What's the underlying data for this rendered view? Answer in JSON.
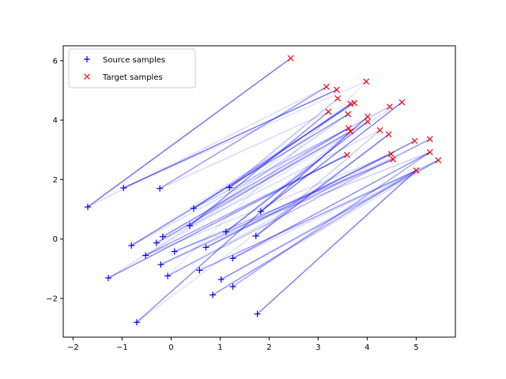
{
  "chart_data": {
    "type": "scatter",
    "title": "",
    "xlabel": "",
    "ylabel": "",
    "xlim": [
      -2.2,
      5.8
    ],
    "ylim": [
      -3.3,
      6.5
    ],
    "xticks": [
      -2,
      -1,
      0,
      1,
      2,
      3,
      4,
      5
    ],
    "yticks": [
      -2,
      0,
      2,
      4,
      6
    ],
    "grid": false,
    "legend_position": "top-left",
    "colors": {
      "source": "#0000ff",
      "target": "#ff0000",
      "lines": "#0000ff"
    },
    "series": [
      {
        "name": "Source samples",
        "marker": "+",
        "points": [
          [
            -1.7,
            1.08
          ],
          [
            -0.97,
            1.72
          ],
          [
            -0.23,
            1.7
          ],
          [
            1.19,
            1.73
          ],
          [
            0.46,
            1.03
          ],
          [
            1.83,
            0.93
          ],
          [
            0.38,
            0.45
          ],
          [
            1.12,
            0.24
          ],
          [
            1.73,
            0.1
          ],
          [
            -0.17,
            0.08
          ],
          [
            -0.81,
            -0.22
          ],
          [
            -0.3,
            -0.13
          ],
          [
            0.71,
            -0.28
          ],
          [
            -0.52,
            -0.55
          ],
          [
            0.07,
            -0.42
          ],
          [
            1.26,
            -0.65
          ],
          [
            -0.21,
            -0.86
          ],
          [
            -1.28,
            -1.31
          ],
          [
            -0.07,
            -1.24
          ],
          [
            0.58,
            -1.05
          ],
          [
            1.02,
            -1.36
          ],
          [
            1.26,
            -1.6
          ],
          [
            0.85,
            -1.88
          ],
          [
            -0.7,
            -2.8
          ],
          [
            1.76,
            -2.52
          ]
        ]
      },
      {
        "name": "Target samples",
        "marker": "x",
        "points": [
          [
            2.44,
            6.08
          ],
          [
            3.17,
            5.12
          ],
          [
            3.38,
            5.02
          ],
          [
            3.98,
            5.3
          ],
          [
            3.4,
            4.73
          ],
          [
            3.66,
            4.55
          ],
          [
            3.74,
            4.58
          ],
          [
            4.46,
            4.45
          ],
          [
            4.71,
            4.6
          ],
          [
            3.21,
            4.28
          ],
          [
            3.61,
            4.2
          ],
          [
            4.01,
            4.12
          ],
          [
            4.01,
            3.95
          ],
          [
            3.62,
            3.73
          ],
          [
            3.66,
            3.62
          ],
          [
            4.26,
            3.66
          ],
          [
            4.44,
            3.52
          ],
          [
            4.97,
            3.3
          ],
          [
            5.28,
            3.36
          ],
          [
            3.59,
            2.83
          ],
          [
            4.49,
            2.86
          ],
          [
            4.53,
            2.68
          ],
          [
            5.28,
            2.92
          ],
          [
            5.0,
            2.31
          ],
          [
            5.45,
            2.65
          ]
        ]
      }
    ],
    "links": [
      [
        0,
        0,
        0.55
      ],
      [
        0,
        1,
        0.15
      ],
      [
        1,
        2,
        0.55
      ],
      [
        2,
        1,
        0.4
      ],
      [
        2,
        9,
        0.15
      ],
      [
        3,
        5,
        0.5
      ],
      [
        3,
        4,
        0.25
      ],
      [
        4,
        6,
        0.45
      ],
      [
        4,
        7,
        0.25
      ],
      [
        5,
        8,
        0.5
      ],
      [
        5,
        11,
        0.15
      ],
      [
        6,
        9,
        0.45
      ],
      [
        6,
        10,
        0.2
      ],
      [
        7,
        12,
        0.5
      ],
      [
        7,
        14,
        0.15
      ],
      [
        8,
        16,
        0.5
      ],
      [
        8,
        15,
        0.2
      ],
      [
        9,
        13,
        0.4
      ],
      [
        9,
        12,
        0.15
      ],
      [
        10,
        10,
        0.45
      ],
      [
        10,
        13,
        0.15
      ],
      [
        11,
        14,
        0.4
      ],
      [
        11,
        15,
        0.15
      ],
      [
        12,
        17,
        0.45
      ],
      [
        12,
        18,
        0.15
      ],
      [
        13,
        19,
        0.4
      ],
      [
        13,
        20,
        0.15
      ],
      [
        14,
        21,
        0.35
      ],
      [
        14,
        22,
        0.2
      ],
      [
        15,
        22,
        0.45
      ],
      [
        15,
        24,
        0.15
      ],
      [
        16,
        20,
        0.35
      ],
      [
        16,
        21,
        0.2
      ],
      [
        17,
        19,
        0.45
      ],
      [
        17,
        13,
        0.15
      ],
      [
        18,
        18,
        0.3
      ],
      [
        18,
        17,
        0.15
      ],
      [
        19,
        23,
        0.3
      ],
      [
        19,
        24,
        0.15
      ],
      [
        20,
        24,
        0.35
      ],
      [
        20,
        23,
        0.2
      ],
      [
        21,
        22,
        0.35
      ],
      [
        22,
        23,
        0.35
      ],
      [
        22,
        24,
        0.15
      ],
      [
        23,
        11,
        0.45
      ],
      [
        23,
        16,
        0.12
      ],
      [
        24,
        23,
        0.5
      ],
      [
        1,
        3,
        0.12
      ],
      [
        6,
        5,
        0.12
      ],
      [
        18,
        3,
        0.1
      ],
      [
        13,
        8,
        0.12
      ],
      [
        10,
        6,
        0.12
      ]
    ]
  }
}
